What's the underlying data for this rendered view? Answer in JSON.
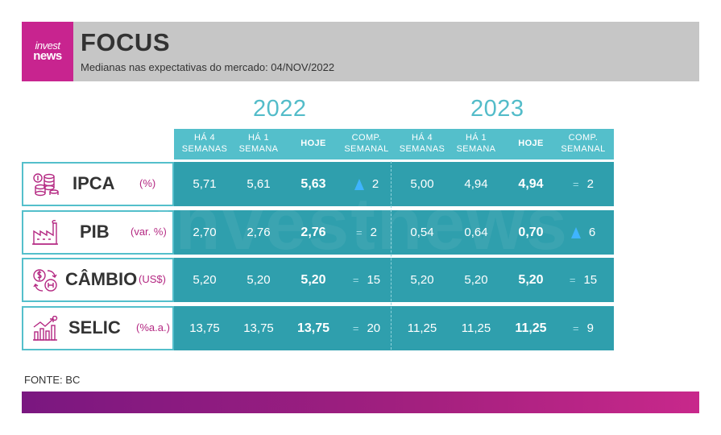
{
  "header": {
    "logo_line1": "invest",
    "logo_line2": "news",
    "title": "FOCUS",
    "subtitle": "Medianas nas expectativas do mercado: 04/NOV/2022"
  },
  "years": [
    "2022",
    "2023"
  ],
  "columns": [
    {
      "line1": "HÁ 4",
      "line2": "SEMANAS"
    },
    {
      "line1": "HÁ 1",
      "line2": "SEMANA"
    },
    {
      "line1": "HOJE",
      "line2": ""
    },
    {
      "line1": "COMP.",
      "line2": "SEMANAL"
    },
    {
      "line1": "HÁ 4",
      "line2": "SEMANAS"
    },
    {
      "line1": "HÁ 1",
      "line2": "SEMANA"
    },
    {
      "line1": "HOJE",
      "line2": ""
    },
    {
      "line1": "COMP.",
      "line2": "SEMANAL"
    }
  ],
  "rows": [
    {
      "name": "IPCA",
      "unit": "(%)",
      "icon": "coins-icon",
      "y2022": {
        "ha4": "5,71",
        "ha1": "5,61",
        "hoje": "5,63",
        "comp_sym": "up",
        "comp": "2"
      },
      "y2023": {
        "ha4": "5,00",
        "ha1": "4,94",
        "hoje": "4,94",
        "comp_sym": "=",
        "comp": "2"
      }
    },
    {
      "name": "PIB",
      "unit": "(var. %)",
      "icon": "factory-icon",
      "y2022": {
        "ha4": "2,70",
        "ha1": "2,76",
        "hoje": "2,76",
        "comp_sym": "=",
        "comp": "2"
      },
      "y2023": {
        "ha4": "0,54",
        "ha1": "0,64",
        "hoje": "0,70",
        "comp_sym": "up",
        "comp": "6"
      }
    },
    {
      "name": "CÂMBIO",
      "unit": "(US$)",
      "icon": "exchange-icon",
      "y2022": {
        "ha4": "5,20",
        "ha1": "5,20",
        "hoje": "5,20",
        "comp_sym": "=",
        "comp": "15"
      },
      "y2023": {
        "ha4": "5,20",
        "ha1": "5,20",
        "hoje": "5,20",
        "comp_sym": "=",
        "comp": "15"
      }
    },
    {
      "name": "SELIC",
      "unit": "(%a.a.)",
      "icon": "chart-up-icon",
      "y2022": {
        "ha4": "13,75",
        "ha1": "13,75",
        "hoje": "13,75",
        "comp_sym": "=",
        "comp": "20"
      },
      "y2023": {
        "ha4": "11,25",
        "ha1": "11,25",
        "hoje": "11,25",
        "comp_sym": "=",
        "comp": "9"
      }
    }
  ],
  "watermark": "investnews",
  "source": "FONTE: BC",
  "colors": {
    "accent": "#c8248f",
    "teal_dark": "#2f9fad",
    "teal_light": "#54bfcb",
    "arrow_up": "#3fb4ff"
  }
}
